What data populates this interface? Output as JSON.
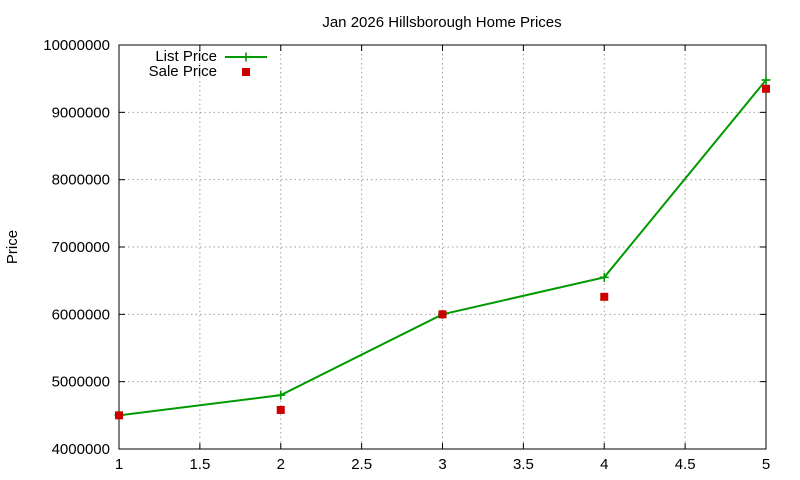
{
  "chart_data": {
    "type": "line",
    "title": "Jan 2026 Hillsborough Home Prices",
    "xlabel": "",
    "ylabel": "Price",
    "xlim": [
      1,
      5
    ],
    "ylim": [
      4000000,
      10000000
    ],
    "xticks": [
      "1",
      "1.5",
      "2",
      "2.5",
      "3",
      "3.5",
      "4",
      "4.5",
      "5"
    ],
    "yticks": [
      "4000000",
      "5000000",
      "6000000",
      "7000000",
      "8000000",
      "9000000",
      "10000000"
    ],
    "grid": true,
    "legend_position": "top-left",
    "series": [
      {
        "name": "List Price",
        "style": "linespoints",
        "marker": "plus",
        "color": "#009900",
        "x": [
          1,
          2,
          3,
          4,
          5
        ],
        "y": [
          4500000,
          4800000,
          6000000,
          6550000,
          9480000
        ]
      },
      {
        "name": "Sale Price",
        "style": "points",
        "marker": "square",
        "color": "#cc0000",
        "x": [
          1,
          2,
          3,
          4,
          5
        ],
        "y": [
          4500000,
          4580000,
          6000000,
          6260000,
          9350000
        ]
      }
    ]
  }
}
